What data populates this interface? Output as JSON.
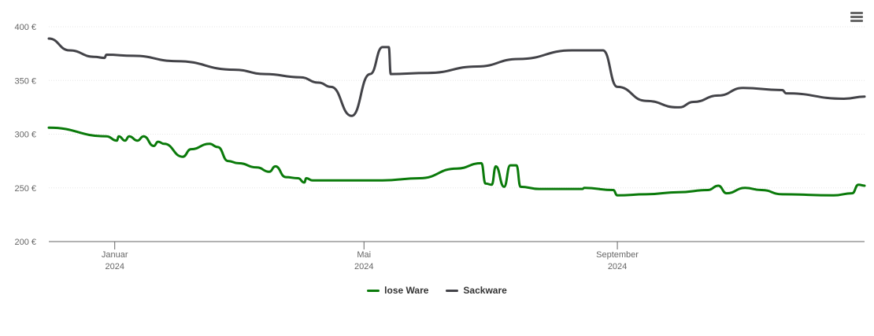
{
  "chart_data": {
    "type": "line",
    "title": "",
    "xlabel": "",
    "ylabel": "",
    "x_range": [
      "2023-11-30",
      "2024-12-30"
    ],
    "ylim": [
      200,
      400
    ],
    "y_ticks": [
      200,
      250,
      300,
      350,
      400
    ],
    "y_tick_labels": [
      "200 €",
      "250 €",
      "300 €",
      "350 €",
      "400 €"
    ],
    "x_ticks": [
      {
        "date": "2024-01-01",
        "month": "Januar",
        "year": "2024"
      },
      {
        "date": "2024-05-01",
        "month": "Mai",
        "year": "2024"
      },
      {
        "date": "2024-09-01",
        "month": "September",
        "year": "2024"
      }
    ],
    "grid": true,
    "legend_position": "bottom-center",
    "series": [
      {
        "name": "lose Ware",
        "color": "#0a7a0a",
        "points": [
          [
            "2023-11-30",
            306
          ],
          [
            "2023-12-28",
            298
          ],
          [
            "2024-01-02",
            294
          ],
          [
            "2024-01-03",
            298
          ],
          [
            "2024-01-06",
            294
          ],
          [
            "2024-01-08",
            298
          ],
          [
            "2024-01-12",
            294
          ],
          [
            "2024-01-15",
            298
          ],
          [
            "2024-01-20",
            289
          ],
          [
            "2024-01-22",
            293
          ],
          [
            "2024-01-25",
            291
          ],
          [
            "2024-02-03",
            279
          ],
          [
            "2024-02-07",
            286
          ],
          [
            "2024-02-16",
            291
          ],
          [
            "2024-02-20",
            288
          ],
          [
            "2024-02-25",
            275
          ],
          [
            "2024-03-01",
            273
          ],
          [
            "2024-03-10",
            269
          ],
          [
            "2024-03-16",
            265
          ],
          [
            "2024-03-19",
            270
          ],
          [
            "2024-03-24",
            260
          ],
          [
            "2024-03-30",
            259
          ],
          [
            "2024-04-02",
            255
          ],
          [
            "2024-04-03",
            259
          ],
          [
            "2024-04-06",
            257
          ],
          [
            "2024-04-20",
            257
          ],
          [
            "2024-05-10",
            257
          ],
          [
            "2024-05-28",
            259
          ],
          [
            "2024-06-15",
            268
          ],
          [
            "2024-06-27",
            273
          ],
          [
            "2024-06-29",
            254
          ],
          [
            "2024-07-02",
            253
          ],
          [
            "2024-07-04",
            270
          ],
          [
            "2024-07-08",
            251
          ],
          [
            "2024-07-11",
            271
          ],
          [
            "2024-07-14",
            271
          ],
          [
            "2024-07-16",
            251
          ],
          [
            "2024-07-25",
            249
          ],
          [
            "2024-08-15",
            249
          ],
          [
            "2024-08-16",
            250
          ],
          [
            "2024-08-30",
            248
          ],
          [
            "2024-09-01",
            243
          ],
          [
            "2024-09-15",
            244
          ],
          [
            "2024-10-01",
            246
          ],
          [
            "2024-10-15",
            248
          ],
          [
            "2024-10-20",
            252
          ],
          [
            "2024-10-24",
            245
          ],
          [
            "2024-11-02",
            250
          ],
          [
            "2024-11-10",
            248
          ],
          [
            "2024-11-20",
            244
          ],
          [
            "2024-12-15",
            243
          ],
          [
            "2024-12-24",
            245
          ],
          [
            "2024-12-27",
            253
          ],
          [
            "2024-12-30",
            252
          ]
        ]
      },
      {
        "name": "Sackware",
        "color": "#434348",
        "points": [
          [
            "2023-11-30",
            389
          ],
          [
            "2023-12-10",
            378
          ],
          [
            "2023-12-22",
            372
          ],
          [
            "2023-12-27",
            371
          ],
          [
            "2023-12-28",
            374
          ],
          [
            "2024-01-10",
            373
          ],
          [
            "2024-01-31",
            368
          ],
          [
            "2024-02-28",
            360
          ],
          [
            "2024-03-14",
            356
          ],
          [
            "2024-03-31",
            353
          ],
          [
            "2024-04-09",
            348
          ],
          [
            "2024-04-15",
            344
          ],
          [
            "2024-04-25",
            317
          ],
          [
            "2024-05-04",
            356
          ],
          [
            "2024-05-10",
            381
          ],
          [
            "2024-05-13",
            381
          ],
          [
            "2024-05-14",
            356
          ],
          [
            "2024-06-01",
            357
          ],
          [
            "2024-06-25",
            363
          ],
          [
            "2024-07-15",
            370
          ],
          [
            "2024-08-10",
            378
          ],
          [
            "2024-08-25",
            378
          ],
          [
            "2024-09-01",
            344
          ],
          [
            "2024-09-15",
            331
          ],
          [
            "2024-09-30",
            325
          ],
          [
            "2024-10-01",
            325
          ],
          [
            "2024-10-08",
            330
          ],
          [
            "2024-10-20",
            336
          ],
          [
            "2024-11-01",
            343
          ],
          [
            "2024-11-20",
            341
          ],
          [
            "2024-11-22",
            338
          ],
          [
            "2024-12-20",
            333
          ],
          [
            "2024-12-30",
            335
          ]
        ]
      }
    ]
  },
  "toolbar": {
    "menu_icon": "hamburger-menu-icon"
  },
  "colors": {
    "grid": "#e6e6e6",
    "axis": "#666666",
    "tick_label": "#666666"
  }
}
